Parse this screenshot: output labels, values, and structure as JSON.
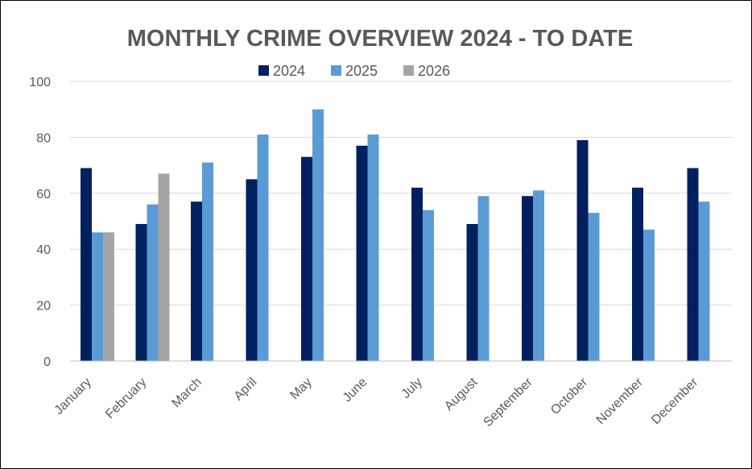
{
  "chart_data": {
    "type": "bar",
    "title": "MONTHLY CRIME OVERVIEW 2024 - TO DATE",
    "categories": [
      "January",
      "February",
      "March",
      "April",
      "May",
      "June",
      "July",
      "August",
      "September",
      "October",
      "November",
      "December"
    ],
    "series": [
      {
        "name": "2024",
        "color": "#002060",
        "values": [
          69,
          49,
          57,
          65,
          73,
          77,
          62,
          49,
          59,
          79,
          62,
          69
        ]
      },
      {
        "name": "2025",
        "color": "#5b9bd5",
        "values": [
          46,
          56,
          71,
          81,
          90,
          81,
          54,
          59,
          61,
          53,
          47,
          57
        ]
      },
      {
        "name": "2026",
        "color": "#a5a5a5",
        "values": [
          46,
          67,
          null,
          null,
          null,
          null,
          null,
          null,
          null,
          null,
          null,
          null
        ]
      }
    ],
    "ylim": [
      0,
      100
    ],
    "yticks": [
      0,
      20,
      40,
      60,
      80,
      100
    ],
    "grid": true,
    "legend_position": "top"
  }
}
